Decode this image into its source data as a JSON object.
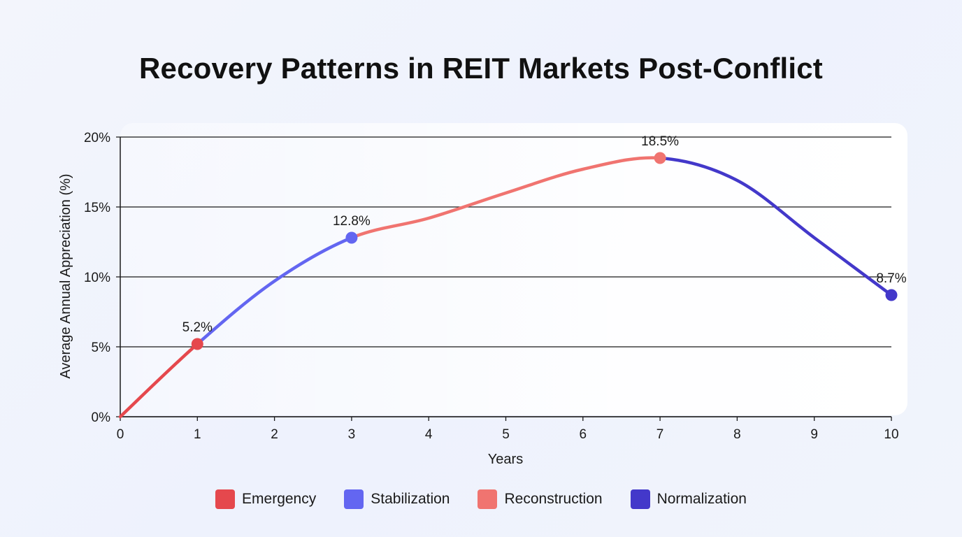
{
  "chart_data": {
    "type": "line",
    "title": "Recovery Patterns in REIT Markets Post-Conflict",
    "xlabel": "Years",
    "ylabel": "Average Annual Appreciation (%)",
    "xlim": [
      0,
      10
    ],
    "ylim": [
      0,
      20
    ],
    "x_ticks": [
      "0",
      "1",
      "2",
      "3",
      "4",
      "5",
      "6",
      "7",
      "8",
      "9",
      "10"
    ],
    "y_ticks": [
      "0%",
      "5%",
      "10%",
      "15%",
      "20%"
    ],
    "grid": true,
    "legend_placement": "bottom",
    "series": [
      {
        "name": "Emergency",
        "color": "#e5484d",
        "x": [
          0,
          1
        ],
        "y": [
          0,
          5.2
        ]
      },
      {
        "name": "Stabilization",
        "color": "#6366f1",
        "x": [
          1,
          2,
          3
        ],
        "y": [
          5.2,
          9.7,
          12.8
        ]
      },
      {
        "name": "Reconstruction",
        "color": "#f07470",
        "x": [
          3,
          4,
          5,
          6,
          7
        ],
        "y": [
          12.8,
          14.2,
          16.0,
          17.7,
          18.5
        ]
      },
      {
        "name": "Normalization",
        "color": "#4338ca",
        "x": [
          7,
          8,
          9,
          10
        ],
        "y": [
          18.5,
          16.9,
          12.8,
          8.7
        ]
      }
    ],
    "markers": [
      {
        "x": 1,
        "y": 5.2,
        "label": "5.2%",
        "color": "#e5484d"
      },
      {
        "x": 3,
        "y": 12.8,
        "label": "12.8%",
        "color": "#6366f1"
      },
      {
        "x": 7,
        "y": 18.5,
        "label": "18.5%",
        "color": "#f07470"
      },
      {
        "x": 10,
        "y": 8.7,
        "label": "8.7%",
        "color": "#4338ca"
      }
    ]
  },
  "legend": [
    {
      "label": "Emergency",
      "color": "#e5484d"
    },
    {
      "label": "Stabilization",
      "color": "#6366f1"
    },
    {
      "label": "Reconstruction",
      "color": "#f07470"
    },
    {
      "label": "Normalization",
      "color": "#4338ca"
    }
  ]
}
